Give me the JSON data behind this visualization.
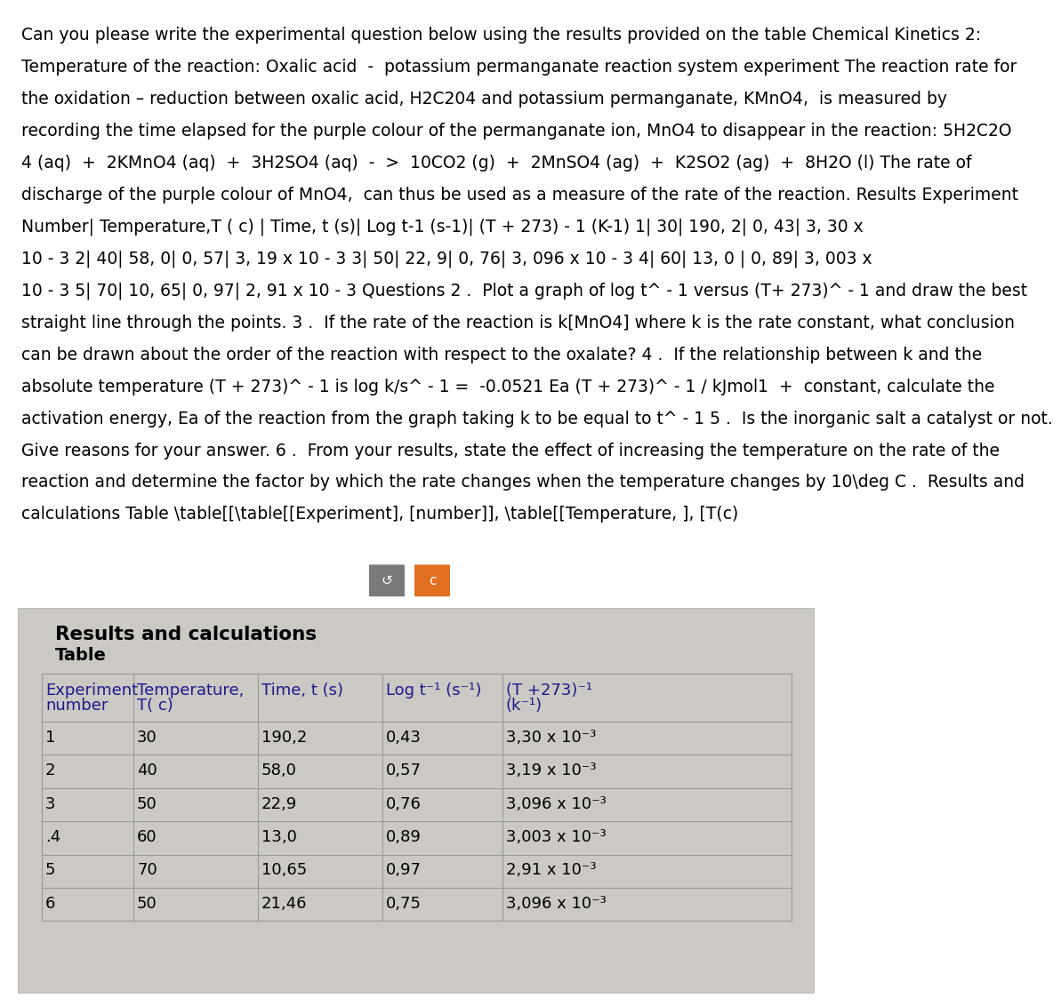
{
  "lines": [
    "Can you please write the experimental question below using the results provided on the table Chemical Kinetics 2:",
    "Temperature of the reaction: Oxalic acid  -  potassium permanganate reaction system experiment The reaction rate for",
    "the oxidation – reduction between oxalic acid, H2C204 and potassium permanganate, KMnO4,  is measured by",
    "recording the time elapsed for the purple colour of the permanganate ion, MnO4 to disappear in the reaction: 5H2C2O",
    "4 (aq)  +  2KMnO4 (aq)  +  3H2SO4 (aq)  -  >  10CO2 (g)  +  2MnSO4 (ag)  +  K2SO2 (ag)  +  8H2O (l) The rate of",
    "discharge of the purple colour of MnO4,  can thus be used as a measure of the rate of the reaction. Results Experiment",
    "Number| Temperature,T ( c) | Time, t (s)| Log t-1 (s-1)| (T + 273) - 1 (K-1) 1| 30| 190, 2| 0, 43| 3, 30 x",
    "10 - 3 2| 40| 58, 0| 0, 57| 3, 19 x 10 - 3 3| 50| 22, 9| 0, 76| 3, 096 x 10 - 3 4| 60| 13, 0 | 0, 89| 3, 003 x",
    "10 - 3 5| 70| 10, 65| 0, 97| 2, 91 x 10 - 3 Questions 2 .  Plot a graph of log t^ - 1 versus (T+ 273)^ - 1 and draw the best",
    "straight line through the points. 3 .  If the rate of the reaction is k[MnO4] where k is the rate constant, what conclusion",
    "can be drawn about the order of the reaction with respect to the oxalate? 4 .  If the relationship between k and the",
    "absolute temperature (T + 273)^ - 1 is log k/s^ - 1 =  -0.0521 Ea (T + 273)^ - 1 / kJmol1  +  constant, calculate the",
    "activation energy, Ea of the reaction from the graph taking k to be equal to t^ - 1 5 .  Is the inorganic salt a catalyst or not.",
    "Give reasons for your answer. 6 .  From your results, state the effect of increasing the temperature on the rate of the",
    "reaction and determine the factor by which the rate changes when the temperature changes by 10\\deg C .  Results and",
    "calculations Table \\table[[\\table[[Experiment], [number]], \\table[[Temperature, ], [T(c)"
  ],
  "section_title": "Results and calculations",
  "table_subtitle": "Table",
  "col_headers_line1": [
    "Experiment",
    "Temperature,",
    "Time, t (s)",
    "Log t⁻¹ (s⁻¹)",
    "(T +273)⁻¹"
  ],
  "col_headers_line2": [
    "number",
    "T( c)",
    "",
    "",
    "(k⁻¹)"
  ],
  "table_data": [
    [
      "1",
      "30",
      "190,2",
      "0,43",
      "3,30 x 10⁻³"
    ],
    [
      "2",
      "40",
      "58,0",
      "0,57",
      "3,19 x 10⁻³"
    ],
    [
      "3",
      "50",
      "22,9",
      "0,76",
      "3,096 x 10⁻³"
    ],
    [
      ".4",
      "60",
      "13,0",
      "0,89",
      "3,003 x 10⁻³"
    ],
    [
      "5",
      "70",
      "10,65",
      "0,97",
      "2,91 x 10⁻³"
    ],
    [
      "6",
      "50",
      "21,46",
      "0,75",
      "3,096 x 10⁻³"
    ]
  ],
  "btn1_color": "#7a7a7a",
  "btn2_color": "#e07020",
  "btn1_symbol": "↺",
  "btn2_symbol": "c",
  "bg_white": "#ffffff",
  "bg_gray": "#d0ccc8",
  "card_bg": "#ccc8c4",
  "table_line_color": "#999999",
  "text_color": "#000000",
  "header_color": "#1a1a8c",
  "body_fontsize": 13.5,
  "section_fontsize": 15.5,
  "table_fontsize": 13.0
}
